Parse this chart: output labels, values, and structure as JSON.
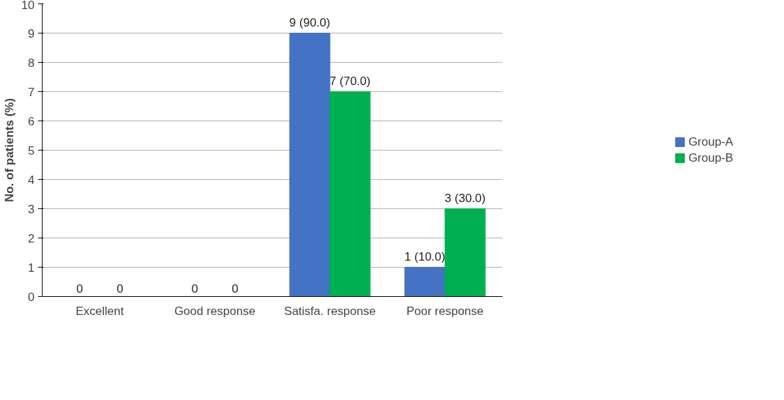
{
  "chart_data": {
    "type": "bar",
    "ylabel": "No. of patients (%)",
    "categories": [
      "Excellent",
      "Good response",
      "Satisfa. response",
      "Poor response"
    ],
    "series": [
      {
        "name": "Group-A",
        "color": "#4472c4",
        "values": [
          0,
          0,
          9,
          1
        ],
        "value_labels": [
          "0",
          "0",
          "9 (90.0)",
          "1 (10.0)"
        ]
      },
      {
        "name": "Group-B",
        "color": "#00b050",
        "values": [
          0,
          0,
          7,
          3
        ],
        "value_labels": [
          "0",
          "0",
          "7 (70.0)",
          "3 (30.0)"
        ]
      }
    ],
    "ylim": [
      0,
      10
    ],
    "yticks": [
      0,
      1,
      2,
      3,
      4,
      5,
      6,
      7,
      8,
      9,
      10
    ],
    "grid": "y",
    "legend": "right"
  }
}
